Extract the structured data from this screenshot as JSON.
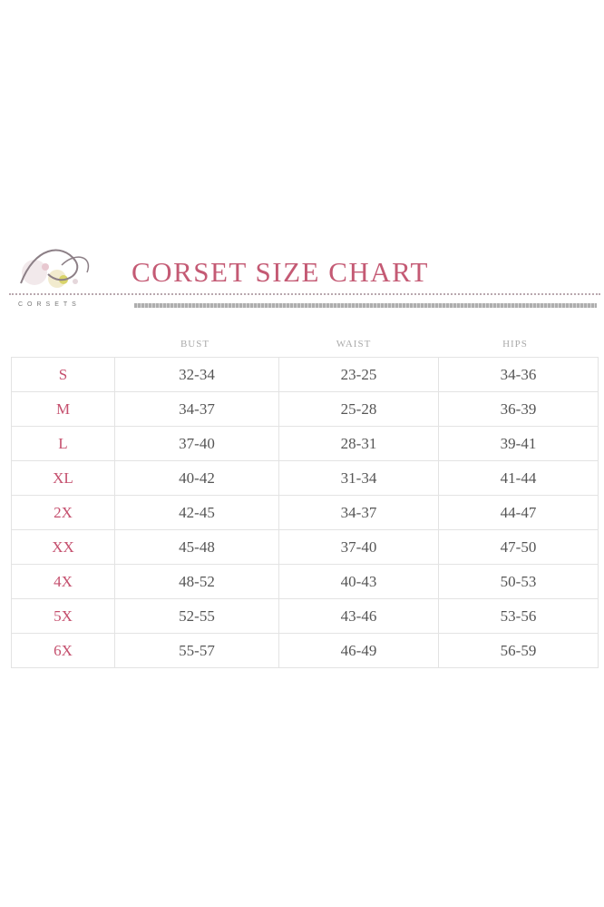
{
  "header": {
    "title": "CORSET SIZE CHART",
    "brand": "CORSETS",
    "accent_color": "#c45a74"
  },
  "table": {
    "columns": [
      "",
      "BUST",
      "WAIST",
      "HIPS"
    ],
    "rows": [
      {
        "size": "S",
        "bust": "32-34",
        "waist": "23-25",
        "hips": "34-36"
      },
      {
        "size": "M",
        "bust": "34-37",
        "waist": "25-28",
        "hips": "36-39"
      },
      {
        "size": "L",
        "bust": "37-40",
        "waist": "28-31",
        "hips": "39-41"
      },
      {
        "size": "XL",
        "bust": "40-42",
        "waist": "31-34",
        "hips": "41-44"
      },
      {
        "size": "2X",
        "bust": "42-45",
        "waist": "34-37",
        "hips": "44-47"
      },
      {
        "size": "XX",
        "bust": "45-48",
        "waist": "37-40",
        "hips": "47-50"
      },
      {
        "size": "4X",
        "bust": "48-52",
        "waist": "40-43",
        "hips": "50-53"
      },
      {
        "size": "5X",
        "bust": "52-55",
        "waist": "43-46",
        "hips": "53-56"
      },
      {
        "size": "6X",
        "bust": "55-57",
        "waist": "46-49",
        "hips": "56-59"
      }
    ]
  }
}
